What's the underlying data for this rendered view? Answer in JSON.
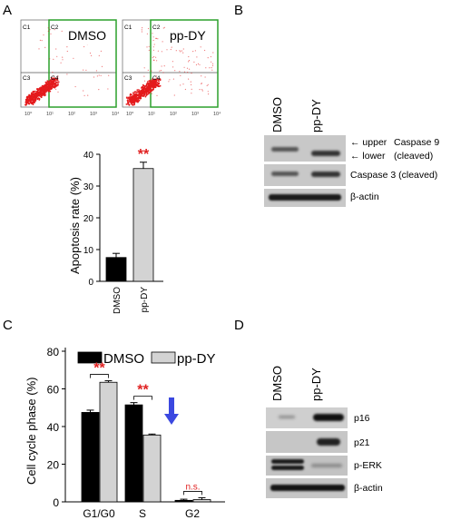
{
  "panels": {
    "a": "A",
    "b": "B",
    "c": "C",
    "d": "D"
  },
  "flow": {
    "plots": [
      {
        "title": "DMSO",
        "quadrants": [
          "C1",
          "C2",
          "C3",
          "C4"
        ]
      },
      {
        "title": "pp-DY",
        "quadrants": [
          "C1",
          "C2",
          "C3",
          "C4"
        ]
      }
    ],
    "tick_labels": [
      "10⁰",
      "10¹",
      "10²",
      "10³",
      "10⁴"
    ],
    "colors": {
      "dots": "#e41a1c",
      "gate": "#2ca02c",
      "line": "#555555"
    }
  },
  "chart_data": [
    {
      "type": "bar",
      "categories": [
        "DMSO",
        "pp-DY"
      ],
      "values": [
        7.5,
        35.5
      ],
      "errors": [
        1.3,
        2.0
      ],
      "ylabel": "Apoptosis rate (%)",
      "ylim": [
        0,
        40
      ],
      "yticks": [
        "0",
        "10",
        "20",
        "30",
        "40"
      ],
      "significance": [
        {
          "label": "**",
          "over": "pp-DY"
        }
      ],
      "colors": [
        "#000000",
        "#d3d3d3"
      ]
    },
    {
      "type": "bar",
      "categories": [
        "G1/G0",
        "S",
        "G2"
      ],
      "series": [
        {
          "name": "DMSO",
          "values": [
            47.5,
            51.5,
            0.8
          ],
          "errors": [
            1.2,
            1.2,
            0.6
          ],
          "color": "#000000"
        },
        {
          "name": "pp-DY",
          "values": [
            63.5,
            35.5,
            1.2
          ],
          "errors": [
            0.8,
            0.5,
            1.0
          ],
          "color": "#d3d3d3"
        }
      ],
      "ylabel": "Cell cycle phase (%)",
      "ylim": [
        0,
        80
      ],
      "yticks": [
        "0",
        "20",
        "40",
        "60",
        "80"
      ],
      "legend": "top",
      "significance": [
        {
          "label": "**",
          "group": "G1/G0"
        },
        {
          "label": "**",
          "group": "S"
        },
        {
          "label": "n.s.",
          "group": "G2"
        }
      ],
      "annotation_arrow_color": "#3b48e0"
    }
  ],
  "blot_b": {
    "lanes": [
      "DMSO",
      "pp-DY"
    ],
    "labels": {
      "upper": "upper",
      "lower": "lower",
      "caspase9": "Caspase 9",
      "cleaved": "(cleaved)",
      "caspase3": "Caspase 3 (cleaved)",
      "actin": "β-actin"
    },
    "arrow": "←"
  },
  "blot_d": {
    "lanes": [
      "DMSO",
      "pp-DY"
    ],
    "labels": [
      "p16",
      "p21",
      "p-ERK",
      "β-actin"
    ]
  },
  "colors": {
    "sig": "#e02020",
    "blot_bg": "#c8c8c8",
    "band": "#141414"
  }
}
